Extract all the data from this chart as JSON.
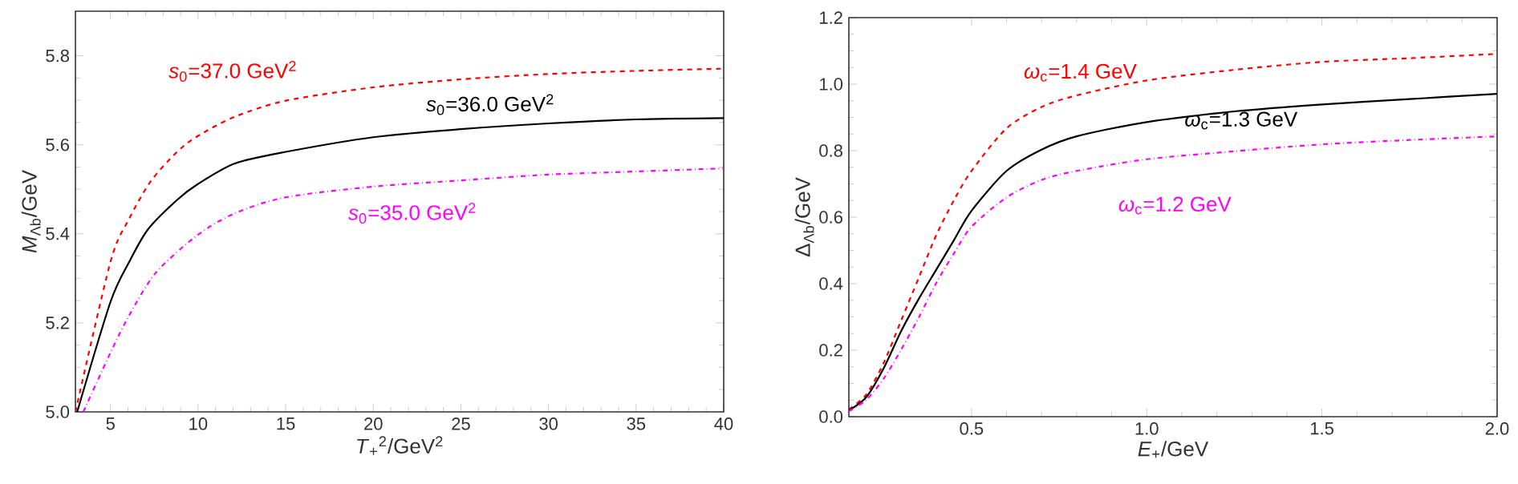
{
  "chart_data": [
    {
      "type": "line",
      "xlabel": "*T*$_{+}$$^{2}$/GeV$^{2}$",
      "ylabel": "*M*$_{Λb}$/GeV",
      "xlim": [
        3,
        40
      ],
      "ylim": [
        5.0,
        5.9
      ],
      "xticks": [
        5,
        10,
        15,
        20,
        25,
        30,
        35,
        40
      ],
      "yticks": [
        {
          "value": 5.0,
          "label": "5.0"
        },
        {
          "value": 5.2,
          "label": "5.2"
        },
        {
          "value": 5.4,
          "label": "5.4"
        },
        {
          "value": 5.6,
          "label": "5.6"
        },
        {
          "value": 5.8,
          "label": "5.8"
        }
      ],
      "grid": false,
      "legend": false,
      "marker": "none",
      "series": [
        {
          "name": "*s*$_{0}$=37.0 GeV$^{2}$",
          "color": "#ff0000",
          "line_style": "dashed",
          "x": [
            3.0,
            5,
            6.07,
            7.3,
            8.8,
            10,
            12.1,
            15,
            20,
            25,
            30,
            35,
            40
          ],
          "values": [
            5.0,
            5.337,
            5.434,
            5.518,
            5.584,
            5.62,
            5.663,
            5.699,
            5.729,
            5.747,
            5.759,
            5.766,
            5.771
          ]
        },
        {
          "name": "*s*$_{0}$=36.0 GeV$^{2}$",
          "color": "#000000",
          "line_style": "solid",
          "x": [
            3.1,
            5,
            6.07,
            7.14,
            8.8,
            10,
            12.1,
            15,
            20,
            25,
            30,
            35,
            40
          ],
          "values": [
            5.0,
            5.247,
            5.337,
            5.41,
            5.476,
            5.512,
            5.558,
            5.584,
            5.617,
            5.635,
            5.648,
            5.657,
            5.66
          ]
        },
        {
          "name": "*s*$_{0}$=35.0 GeV$^{2}$",
          "color": "#ff00ff",
          "line_style": "dashdot",
          "x": [
            3.45,
            5,
            6.07,
            7.6,
            10,
            12.1,
            15,
            20,
            25,
            30,
            35,
            40
          ],
          "values": [
            5.0,
            5.133,
            5.217,
            5.313,
            5.398,
            5.446,
            5.482,
            5.506,
            5.52,
            5.533,
            5.54,
            5.547
          ]
        }
      ]
    },
    {
      "type": "line",
      "xlabel": "*E*$_{+}$/GeV",
      "ylabel": "Δ$_{Λb}$/GeV",
      "xlim": [
        0.15,
        2.0
      ],
      "ylim": [
        0.0,
        1.2
      ],
      "xticks": [
        {
          "value": 0.5,
          "label": "0.5"
        },
        {
          "value": 1.0,
          "label": "1.0"
        },
        {
          "value": 1.5,
          "label": "1.5"
        },
        {
          "value": 2.0,
          "label": "2.0"
        }
      ],
      "yticks": [
        {
          "value": 0.0,
          "label": "0.0"
        },
        {
          "value": 0.2,
          "label": "0.2"
        },
        {
          "value": 0.4,
          "label": "0.4"
        },
        {
          "value": 0.6,
          "label": "0.6"
        },
        {
          "value": 0.8,
          "label": "0.8"
        },
        {
          "value": 1.0,
          "label": "1.0"
        },
        {
          "value": 1.2,
          "label": "1.2"
        }
      ],
      "grid": false,
      "legend": false,
      "marker": "none",
      "series": [
        {
          "name": "*ω*$_{c}$=1.4 GeV",
          "color": "#ff0000",
          "line_style": "dashed",
          "x": [
            0.15,
            0.2,
            0.25,
            0.3,
            0.35,
            0.4,
            0.45,
            0.5,
            0.6,
            0.7,
            0.8,
            1.0,
            1.25,
            1.5,
            1.75,
            2.0
          ],
          "values": [
            0.022,
            0.067,
            0.163,
            0.291,
            0.419,
            0.547,
            0.651,
            0.739,
            0.867,
            0.931,
            0.966,
            1.011,
            1.043,
            1.067,
            1.078,
            1.091
          ]
        },
        {
          "name": "*ω*$_{c}$=1.3 GeV",
          "color": "#000000",
          "line_style": "solid",
          "x": [
            0.15,
            0.2,
            0.25,
            0.3,
            0.35,
            0.4,
            0.45,
            0.5,
            0.6,
            0.7,
            0.8,
            1.0,
            1.25,
            1.5,
            1.75,
            2.0
          ],
          "values": [
            0.019,
            0.059,
            0.147,
            0.259,
            0.355,
            0.443,
            0.531,
            0.619,
            0.739,
            0.803,
            0.843,
            0.886,
            0.918,
            0.939,
            0.955,
            0.971
          ]
        },
        {
          "name": "*ω*$_{c}$=1.2 GeV",
          "color": "#ff00ff",
          "line_style": "dashdot",
          "x": [
            0.15,
            0.2,
            0.25,
            0.3,
            0.35,
            0.4,
            0.45,
            0.5,
            0.6,
            0.7,
            0.8,
            1.0,
            1.25,
            1.5,
            1.75,
            2.0
          ],
          "values": [
            0.016,
            0.051,
            0.115,
            0.203,
            0.299,
            0.403,
            0.491,
            0.571,
            0.659,
            0.712,
            0.739,
            0.774,
            0.798,
            0.819,
            0.832,
            0.843
          ]
        }
      ]
    }
  ]
}
